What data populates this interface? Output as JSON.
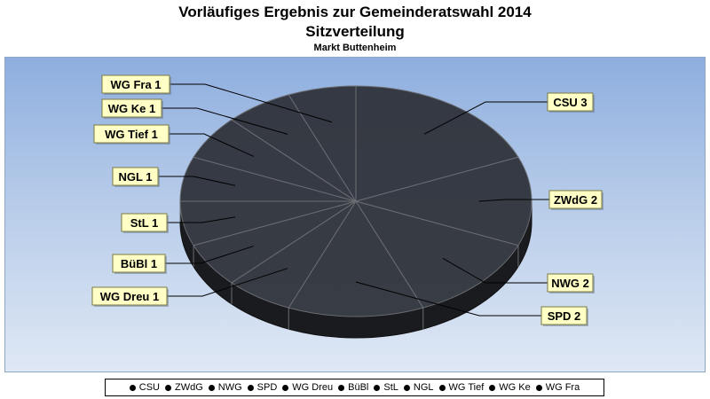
{
  "chart_data": {
    "type": "pie",
    "title": "Vorläufiges Ergebnis zur Gemeinderatswahl 2014",
    "subtitle": "Sitzverteilung",
    "caption": "Markt Buttenheim",
    "legend_position": "bottom",
    "slices": [
      {
        "label": "CSU",
        "value": 3,
        "callout": "CSU 3"
      },
      {
        "label": "ZWdG",
        "value": 2,
        "callout": "ZWdG 2"
      },
      {
        "label": "NWG",
        "value": 2,
        "callout": "NWG 2"
      },
      {
        "label": "SPD",
        "value": 2,
        "callout": "SPD 2"
      },
      {
        "label": "WG Dreu",
        "value": 1,
        "callout": "WG Dreu 1"
      },
      {
        "label": "BüBl",
        "value": 1,
        "callout": "BüBl 1"
      },
      {
        "label": "StL",
        "value": 1,
        "callout": "StL 1"
      },
      {
        "label": "NGL",
        "value": 1,
        "callout": "NGL 1"
      },
      {
        "label": "WG Tief",
        "value": 1,
        "callout": "WG Tief 1"
      },
      {
        "label": "WG Ke",
        "value": 1,
        "callout": "WG Ke 1"
      },
      {
        "label": "WG Fra",
        "value": 1,
        "callout": "WG Fra 1"
      }
    ]
  },
  "colors": {
    "slice_top": "#2c2f37",
    "slice_side": "#1a1b1f",
    "separator": "#6a6d72",
    "callout_bg": "#ffffc6",
    "callout_border": "#7a7a40"
  }
}
